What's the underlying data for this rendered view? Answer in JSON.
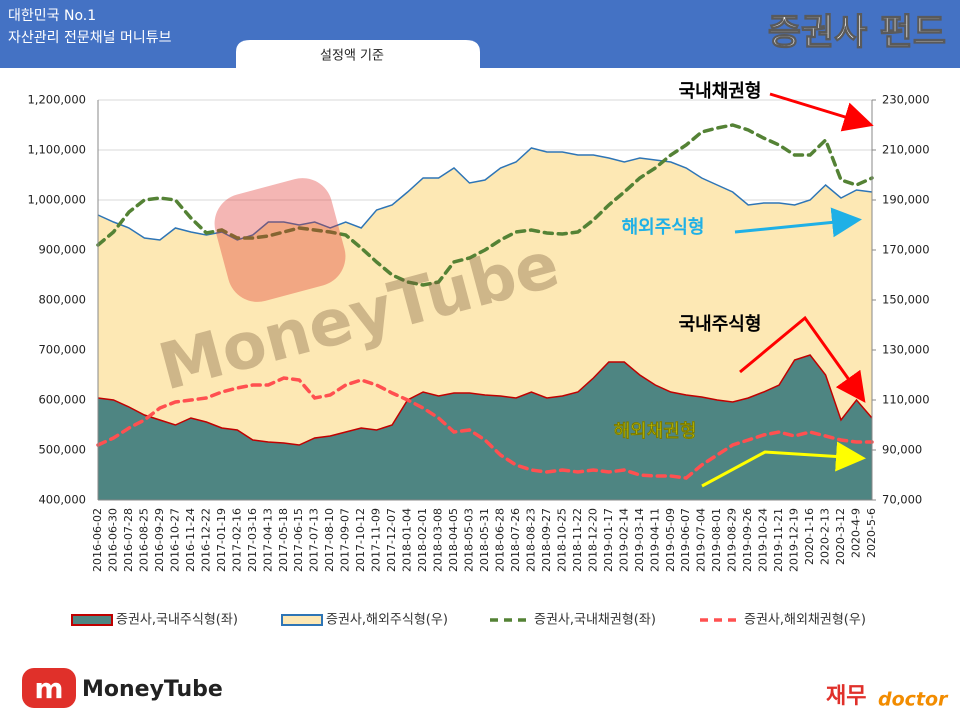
{
  "header": {
    "tagline1": "대한민국 No.1",
    "tagline2": "자산관리 전문채널 머니튜브",
    "title": "증권사 펀드",
    "tab": "설정액 기준"
  },
  "chart_data": {
    "type": "combo",
    "categories": [
      "2016-06-02",
      "2016-06-30",
      "2016-07-28",
      "2016-08-25",
      "2016-09-29",
      "2016-10-27",
      "2016-11-24",
      "2016-12-22",
      "2017-01-19",
      "2017-02-16",
      "2017-03-16",
      "2017-04-13",
      "2017-05-18",
      "2017-06-15",
      "2017-07-13",
      "2017-08-10",
      "2017-09-07",
      "2017-10-12",
      "2017-11-09",
      "2017-12-07",
      "2018-01-04",
      "2018-02-01",
      "2018-03-08",
      "2018-04-05",
      "2018-05-03",
      "2018-05-31",
      "2018-06-28",
      "2018-07-26",
      "2018-08-23",
      "2018-09-27",
      "2018-10-25",
      "2018-11-22",
      "2018-12-20",
      "2019-01-17",
      "2019-02-14",
      "2019-03-14",
      "2019-04-11",
      "2019-05-09",
      "2019-06-07",
      "2019-07-04",
      "2019-08-01",
      "2019-08-29",
      "2019-09-26",
      "2019-10-24",
      "2019-11-21",
      "2019-12-19",
      "2020-1-16",
      "2020-2-13",
      "2020-3-12",
      "2020-4-9",
      "2020-5-6"
    ],
    "series": [
      {
        "name": "증권사,국내주식형(좌)",
        "type": "area",
        "color": "#4e8582",
        "stroke": "#c00000",
        "values": [
          604000,
          600000,
          586000,
          570000,
          560000,
          550000,
          564000,
          556000,
          544000,
          540000,
          520000,
          516000,
          514000,
          510000,
          524000,
          528000,
          536000,
          544000,
          540000,
          550000,
          600000,
          616000,
          608000,
          614000,
          614000,
          610000,
          608000,
          604000,
          616000,
          604000,
          608000,
          616000,
          644000,
          676000,
          676000,
          650000,
          630000,
          616000,
          610000,
          606000,
          600000,
          596000,
          604000,
          616000,
          630000,
          680000,
          690000,
          650000,
          560000,
          600000,
          564000
        ]
      },
      {
        "name": "증권사,해외주식형(우)",
        "type": "area",
        "axis": "y2",
        "color": "#fde8b4",
        "stroke": "#2e75b6",
        "values": [
          184000,
          181200,
          178800,
          174800,
          174000,
          178800,
          177200,
          176000,
          177200,
          174000,
          176000,
          181200,
          181200,
          180000,
          181200,
          178800,
          181200,
          178800,
          186000,
          188000,
          193200,
          198800,
          198800,
          202800,
          196800,
          198000,
          202800,
          205200,
          210800,
          209200,
          209200,
          208000,
          208000,
          206800,
          205200,
          206800,
          206000,
          205200,
          202800,
          198800,
          196000,
          193200,
          188000,
          188800,
          188800,
          188000,
          190000,
          196000,
          190800,
          194000,
          193200
        ]
      },
      {
        "name": "증권사,국내채권형(좌)",
        "type": "line",
        "dashed": true,
        "color": "#548235",
        "values": [
          910000,
          936000,
          976000,
          1000000,
          1004000,
          1000000,
          964000,
          934000,
          940000,
          924000,
          924000,
          928000,
          936000,
          944000,
          940000,
          936000,
          930000,
          904000,
          876000,
          850000,
          836000,
          830000,
          836000,
          876000,
          884000,
          900000,
          920000,
          936000,
          940000,
          934000,
          932000,
          936000,
          960000,
          990000,
          1016000,
          1044000,
          1064000,
          1090000,
          1110000,
          1136000,
          1144000,
          1150000,
          1140000,
          1124000,
          1110000,
          1090000,
          1090000,
          1120000,
          1040000,
          1030000,
          1044000
        ]
      },
      {
        "name": "증권사,해외채권형(우)",
        "type": "line",
        "dashed": true,
        "axis": "y2",
        "color": "#ff5050",
        "values": [
          92000,
          94800,
          98800,
          102000,
          106800,
          109200,
          110000,
          110800,
          113200,
          114800,
          116000,
          116000,
          118800,
          118000,
          110800,
          112000,
          116000,
          118000,
          116000,
          112800,
          110000,
          106800,
          102800,
          97200,
          98000,
          94000,
          88000,
          84000,
          82000,
          81200,
          82000,
          81200,
          82000,
          81200,
          82000,
          80000,
          79600,
          79600,
          78800,
          84000,
          88000,
          92000,
          94000,
          96000,
          97200,
          95600,
          97200,
          95600,
          94000,
          93200,
          93200
        ]
      }
    ],
    "ylim": [
      400000,
      1200000
    ],
    "yticks": [
      {
        "value": 400000,
        "label": "400,000"
      },
      {
        "value": 500000,
        "label": "500,000"
      },
      {
        "value": 600000,
        "label": "600,000"
      },
      {
        "value": 700000,
        "label": "700,000"
      },
      {
        "value": 800000,
        "label": "800,000"
      },
      {
        "value": 900000,
        "label": "900,000"
      },
      {
        "value": 1000000,
        "label": "1,000,000"
      },
      {
        "value": 1100000,
        "label": "1,100,000"
      },
      {
        "value": 1200000,
        "label": "1,200,000"
      }
    ],
    "y2lim": [
      70000,
      230000
    ],
    "y2ticks": [
      {
        "value": 70000,
        "label": "70,000"
      },
      {
        "value": 90000,
        "label": "90,000"
      },
      {
        "value": 110000,
        "label": "110,000"
      },
      {
        "value": 130000,
        "label": "130,000"
      },
      {
        "value": 150000,
        "label": "150,000"
      },
      {
        "value": 170000,
        "label": "170,000"
      },
      {
        "value": 190000,
        "label": "190,000"
      },
      {
        "value": 210000,
        "label": "210,000"
      },
      {
        "value": 230000,
        "label": "230,000"
      }
    ],
    "grid": true,
    "legend": "bottom",
    "annotations": [
      {
        "text": "국내채권형",
        "color": "#000000"
      },
      {
        "text": "해외주식형",
        "color": "#1fb0e6"
      },
      {
        "text": "국내주식형",
        "color": "#000000"
      },
      {
        "text": "해외채권형",
        "color": "#ffff00"
      }
    ]
  },
  "watermark": "MoneyTube",
  "logo_left": "MoneyTube",
  "logo_right": {
    "main": "재무",
    "sub": "doctor"
  }
}
